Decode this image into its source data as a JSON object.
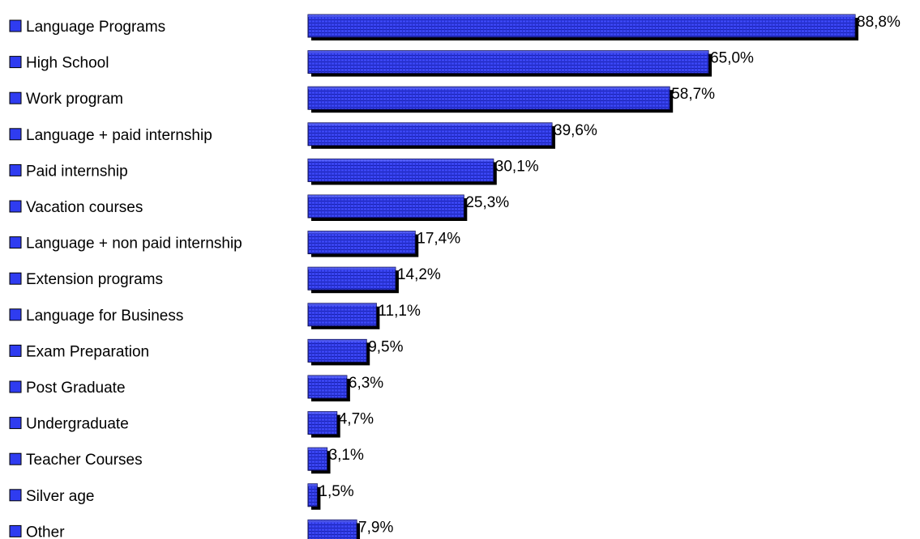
{
  "chart_data": {
    "type": "bar",
    "orientation": "horizontal",
    "title": "",
    "xlabel": "",
    "ylabel": "",
    "xlim": [
      0,
      100
    ],
    "grid": false,
    "legend": "none",
    "colors": {
      "bar": "#2f3cf0",
      "bar_dark": "#0c0f8a",
      "bar_light": "#6a74ff",
      "shadow": "#000000",
      "bar_outline": "#0a0a4a"
    },
    "categories": [
      {
        "label": "Language Programs",
        "value": 88.8,
        "value_label": "88,8%"
      },
      {
        "label": "High School",
        "value": 65.0,
        "value_label": "65,0%"
      },
      {
        "label": "Work program",
        "value": 58.7,
        "value_label": "58,7%"
      },
      {
        "label": "Language + paid internship",
        "value": 39.6,
        "value_label": "39,6%"
      },
      {
        "label": "Paid internship",
        "value": 30.1,
        "value_label": "30,1%"
      },
      {
        "label": "Vacation courses",
        "value": 25.3,
        "value_label": "25,3%"
      },
      {
        "label": "Language + non paid internship",
        "value": 17.4,
        "value_label": "17,4%"
      },
      {
        "label": "Extension programs",
        "value": 14.2,
        "value_label": "14,2%"
      },
      {
        "label": "Language for Business",
        "value": 11.1,
        "value_label": "11,1%"
      },
      {
        "label": "Exam Preparation",
        "value": 9.5,
        "value_label": "9,5%"
      },
      {
        "label": "Post Graduate",
        "value": 6.3,
        "value_label": "6,3%"
      },
      {
        "label": "Undergraduate",
        "value": 4.7,
        "value_label": "4,7%"
      },
      {
        "label": "Teacher Courses",
        "value": 3.1,
        "value_label": "3,1%"
      },
      {
        "label": "Silver age",
        "value": 1.5,
        "value_label": "1,5%"
      },
      {
        "label": "Other",
        "value": 7.9,
        "value_label": "7,9%"
      }
    ]
  }
}
